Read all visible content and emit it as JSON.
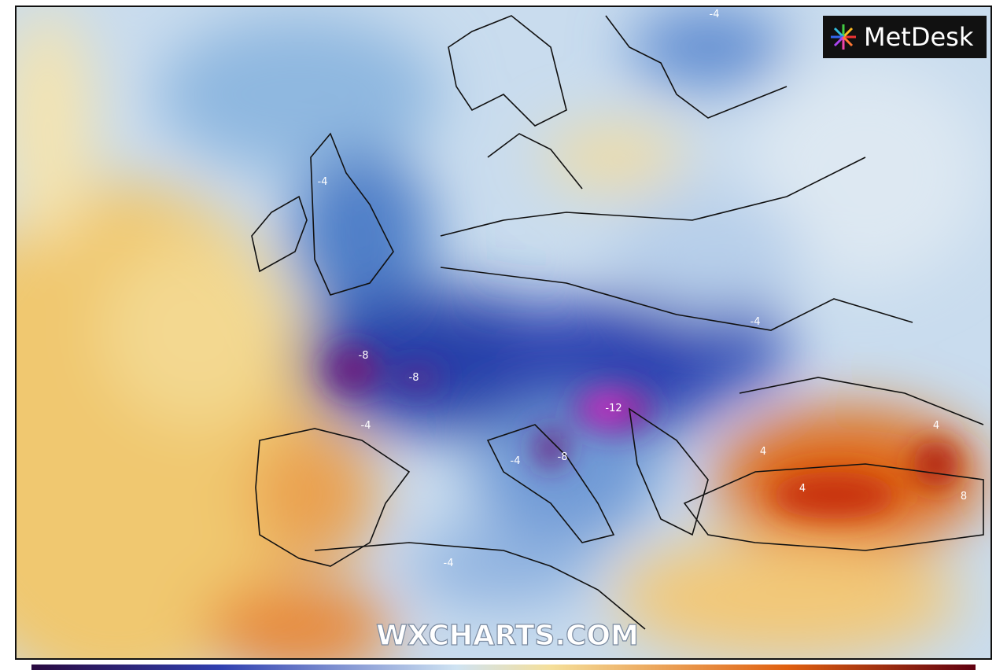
{
  "logo": {
    "text": "MetDesk"
  },
  "watermark": "WXCHARTS.COM",
  "contour_labels": [
    "-4",
    "-8",
    "-8",
    "-12",
    "-8",
    "-4",
    "-4",
    "-4",
    "4",
    "4",
    "4",
    "8",
    "-4",
    "-4"
  ]
}
